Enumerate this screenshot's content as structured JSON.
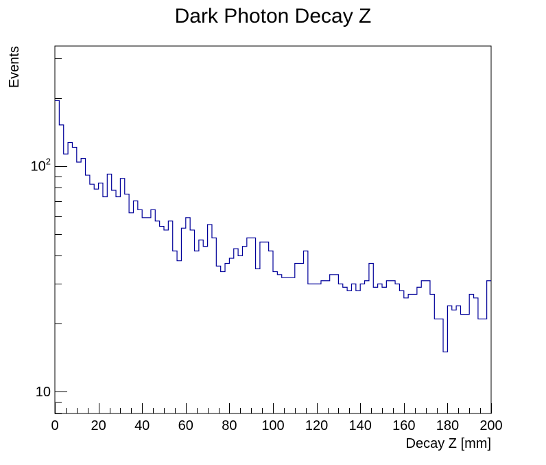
{
  "chart_data": {
    "type": "line",
    "style": "step-histogram",
    "title": "Dark Photon Decay Z",
    "xlabel": "Decay Z [mm]",
    "ylabel": "Events",
    "xlim": [
      0,
      200
    ],
    "ylim": [
      8,
      340
    ],
    "yscale": "log",
    "grid": false,
    "legend": "none",
    "x_ticks": [
      0,
      20,
      40,
      60,
      80,
      100,
      120,
      140,
      160,
      180,
      200
    ],
    "x_tick_labels": [
      "0",
      "20",
      "40",
      "60",
      "80",
      "100",
      "120",
      "140",
      "160",
      "180",
      "200"
    ],
    "y_ticks": [
      10,
      100
    ],
    "y_tick_labels": [
      {
        "base": "10",
        "exp": ""
      },
      {
        "base": "10",
        "exp": "2"
      }
    ],
    "y_minor_ticks": [
      8,
      9,
      20,
      30,
      40,
      50,
      60,
      70,
      80,
      90,
      200,
      300
    ],
    "bin_width": 2,
    "bin_edges_start": 0,
    "values": [
      195,
      152,
      113,
      127,
      121,
      104,
      108,
      91,
      83,
      79,
      84,
      73,
      92,
      78,
      73,
      88,
      75,
      62,
      70,
      64,
      59,
      59,
      64,
      57,
      54,
      52,
      57,
      42,
      38,
      53,
      59,
      52,
      42,
      47,
      44,
      55,
      48,
      36,
      34,
      37,
      39,
      43,
      40,
      44,
      48,
      48,
      35,
      46,
      46,
      42,
      34,
      33,
      32,
      32,
      32,
      37,
      37,
      42,
      30,
      30,
      30,
      31,
      31,
      33,
      33,
      30,
      29,
      28,
      30,
      28,
      30,
      31,
      37,
      29,
      30,
      29,
      31,
      31,
      30,
      28,
      26,
      27,
      27,
      29,
      31,
      31,
      27,
      21,
      21,
      15,
      24,
      23,
      24,
      22,
      22,
      27,
      26,
      21,
      21,
      31
    ],
    "line_color": "#000099",
    "frame_color": "#000000"
  }
}
